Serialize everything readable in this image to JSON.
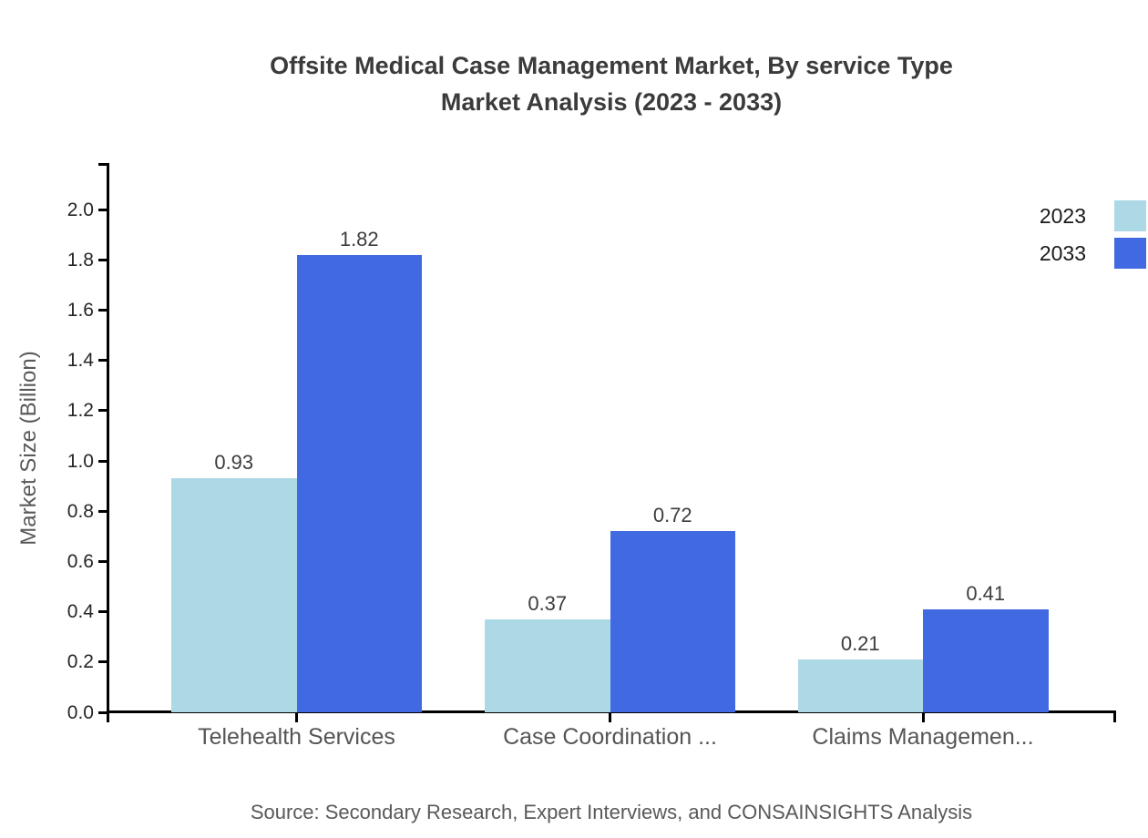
{
  "title": {
    "line1": "Offsite Medical Case Management Market, By service Type",
    "line2": "Market Analysis (2023 - 2033)"
  },
  "source": "Source: Secondary Research, Expert Interviews, and CONSAINSIGHTS Analysis",
  "chart_data": {
    "type": "bar",
    "title": "Offsite Medical Case Management Market, By service Type Market Analysis (2023 - 2033)",
    "categories": [
      "Telehealth Services",
      "Case Coordination ...",
      "Claims Managemen..."
    ],
    "series": [
      {
        "name": "2023",
        "color": "#ADD8E6",
        "values": [
          0.93,
          0.37,
          0.21
        ]
      },
      {
        "name": "2033",
        "color": "#4169E1",
        "values": [
          1.82,
          0.72,
          0.41
        ]
      }
    ],
    "xlabel": "",
    "ylabel": "Market Size (Billion)",
    "ylim": [
      0.0,
      2.18
    ],
    "yticks": [
      0.0,
      0.2,
      0.4,
      0.6,
      0.8,
      1.0,
      1.2,
      1.4,
      1.6,
      1.8,
      2.0
    ],
    "grid": false,
    "legend_position": "top-right",
    "bar_value_labels": true
  },
  "colors": {
    "series_2023": "#ADD8E6",
    "series_2033": "#4169E1",
    "axis": "#000000",
    "title_text": "#3b3b3b",
    "tick_label_text": "#262626",
    "category_label_text": "#555555",
    "value_label_text": "#3d3d3d",
    "muted_text": "#595959",
    "background": "#ffffff"
  }
}
